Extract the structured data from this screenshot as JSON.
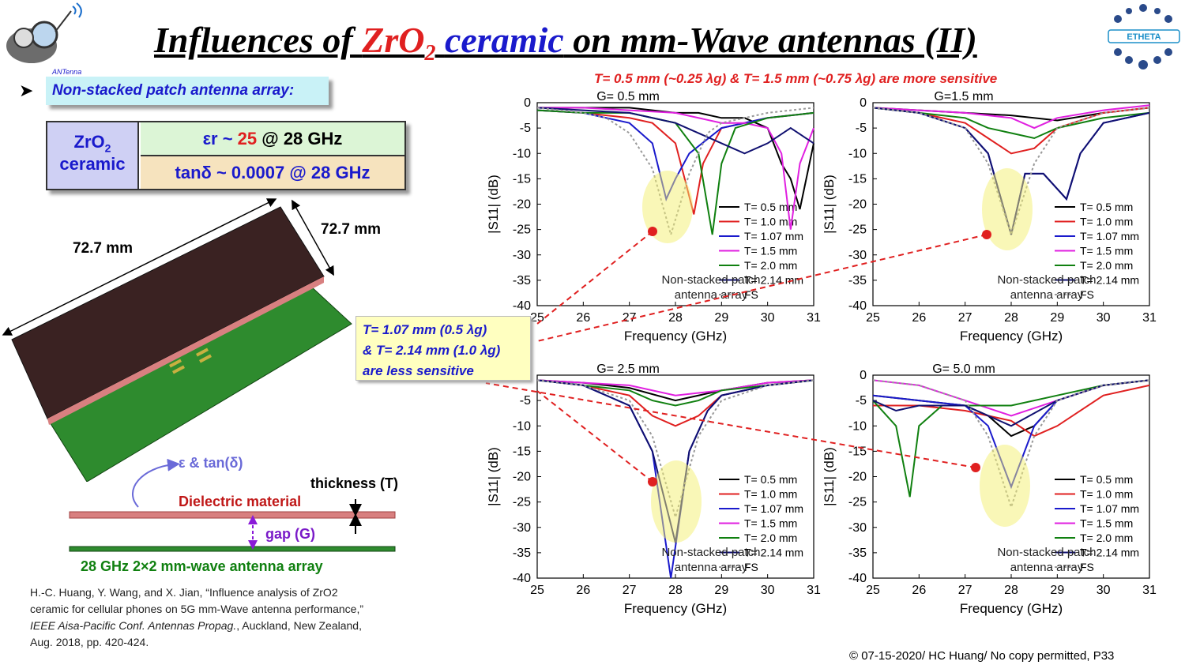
{
  "title": {
    "part1": "Influences of ",
    "zr": "ZrO",
    "sub": "2",
    "part2": " ",
    "ceramic": "ceramic",
    "part3": " on mm-Wave antennas (II)"
  },
  "subtitle": "T= 0.5 mm (~0.25 λg) & T= 1.5 mm (~0.75 λg) are more sensitive",
  "bullet": "Non-stacked patch antenna array:",
  "material": {
    "name1": "ZrO",
    "sub": "2",
    "name2": "ceramic",
    "er_pre": "εr ~ ",
    "er_val": "25",
    "er_post": " @ 28 GHz",
    "tan": "tanδ ~ 0.0007 @ 28 GHz"
  },
  "model": {
    "dim1": "72.7 mm",
    "dim2": "72.7 mm"
  },
  "diagram": {
    "eps": "ε & tan(δ)",
    "thickness": "thickness (T)",
    "dielectric": "Dielectric material",
    "gap": "gap (G)",
    "array": "28 GHz 2×2 mm-wave antenna array"
  },
  "note": {
    "line1": "T= 1.07 mm (0.5 λg)",
    "line2": "& T= 2.14 mm (1.0 λg)",
    "line3": "are less sensitive"
  },
  "reference": {
    "line1": "H.-C. Huang, Y. Wang, and X. Jian, “Influence analysis of ZrO2",
    "line2": "ceramic for cellular phones on 5G mm-Wave antenna performance,”",
    "line3": "IEEE Aisa-Pacific Conf. Antennas Propag.",
    "line3b": ", Auckland, New Zealand,",
    "line4": "Aug. 2018, pp. 420-424."
  },
  "copyright": "© 07-15-2020/ HC Huang/ No copy permitted, P33",
  "colors": {
    "T0.5": "#000000",
    "T1.0": "#e02020",
    "T1.07": "#1a1acc",
    "T1.5": "#e020e0",
    "T2.0": "#108010",
    "T2.14": "#101070",
    "FS": "#999999"
  },
  "chart_data": [
    {
      "type": "line",
      "title": "G= 0.5 mm",
      "xlabel": "Frequency (GHz)",
      "ylabel": "|S11| (dB)",
      "xlim": [
        25,
        31
      ],
      "ylim": [
        -40,
        0
      ],
      "xticks": [
        "25",
        "26",
        "27",
        "28",
        "29",
        "30",
        "31"
      ],
      "yticks": [
        "0",
        "-5",
        "-10",
        "-15",
        "-20",
        "-25",
        "-30",
        "-35",
        "-40"
      ],
      "annotation": "Non-stacked patch antenna array",
      "series": [
        {
          "name": "T= 0.5 mm",
          "x": [
            25,
            26,
            27,
            27.5,
            28,
            28.5,
            29,
            29.5,
            30,
            30.3,
            30.5,
            30.7,
            31
          ],
          "y": [
            -1,
            -1,
            -1,
            -1.5,
            -2,
            -2,
            -3,
            -3,
            -5,
            -12,
            -15,
            -21,
            -8
          ]
        },
        {
          "name": "T= 1.0 mm",
          "x": [
            25,
            26,
            27,
            27.5,
            28,
            28.2,
            28.4,
            28.6,
            29,
            30,
            31
          ],
          "y": [
            -1.5,
            -2,
            -3,
            -4,
            -8,
            -15,
            -22,
            -12,
            -5,
            -3,
            -2
          ]
        },
        {
          "name": "T= 1.07 mm",
          "x": [
            25,
            26,
            27,
            27.5,
            27.8,
            28,
            28.3,
            29,
            30,
            31
          ],
          "y": [
            -1.5,
            -2,
            -4,
            -8,
            -19,
            -15,
            -10,
            -5,
            -3,
            -2
          ]
        },
        {
          "name": "T= 1.5 mm",
          "x": [
            25,
            26,
            27,
            28,
            29,
            29.5,
            30,
            30.3,
            30.5,
            30.7,
            31
          ],
          "y": [
            -1,
            -1,
            -1.5,
            -2,
            -4,
            -4,
            -5,
            -10,
            -25,
            -12,
            -5
          ]
        },
        {
          "name": "T= 2.0 mm",
          "x": [
            25,
            26,
            27,
            28,
            28.5,
            28.8,
            29,
            29.3,
            30,
            31
          ],
          "y": [
            -1.5,
            -2,
            -2,
            -4,
            -10,
            -26,
            -12,
            -5,
            -3,
            -2
          ]
        },
        {
          "name": "T= 2.14 mm",
          "x": [
            25,
            26,
            27,
            28,
            29,
            29.5,
            30,
            30.5,
            31
          ],
          "y": [
            -1,
            -1.5,
            -2,
            -4,
            -8,
            -10,
            -8,
            -5,
            -8
          ]
        },
        {
          "name": "FS",
          "x": [
            25,
            26,
            26.5,
            27,
            27.5,
            27.9,
            28.3,
            28.7,
            29,
            30,
            31
          ],
          "y": [
            -1,
            -2,
            -3,
            -6,
            -13,
            -26,
            -14,
            -6,
            -4,
            -2,
            -1
          ]
        }
      ]
    },
    {
      "type": "line",
      "title": "G=1.5 mm",
      "xlabel": "Frequency (GHz)",
      "ylabel": "|S11| (dB)",
      "xlim": [
        25,
        31
      ],
      "ylim": [
        -40,
        0
      ],
      "xticks": [
        "25",
        "26",
        "27",
        "28",
        "29",
        "30",
        "31"
      ],
      "yticks": [
        "0",
        "-5",
        "-10",
        "-15",
        "-20",
        "-25",
        "-30",
        "-35",
        "-40"
      ],
      "annotation": "Non-stacked patch antenna array",
      "series": [
        {
          "name": "T= 0.5 mm",
          "x": [
            25,
            26,
            27,
            28,
            29,
            30,
            31
          ],
          "y": [
            -1,
            -1.5,
            -2,
            -2.5,
            -3.5,
            -2,
            -1
          ]
        },
        {
          "name": "T= 1.0 mm",
          "x": [
            25,
            26,
            27,
            27.5,
            28,
            28.5,
            29,
            30,
            31
          ],
          "y": [
            -1,
            -2,
            -4,
            -7,
            -10,
            -9,
            -5,
            -2,
            -1
          ]
        },
        {
          "name": "T= 1.07 mm",
          "x": [
            25,
            26,
            27,
            27.5,
            28,
            28.3,
            28.7,
            29,
            29.2,
            29.5,
            30,
            31
          ],
          "y": [
            -1,
            -2,
            -5,
            -10,
            -26,
            -14,
            -14,
            -17,
            -19,
            -10,
            -4,
            -2
          ]
        },
        {
          "name": "T= 1.5 mm",
          "x": [
            25,
            26,
            27,
            28,
            28.5,
            29,
            30,
            31
          ],
          "y": [
            -1,
            -1.5,
            -2,
            -3,
            -5,
            -3,
            -1.5,
            -0.5
          ]
        },
        {
          "name": "T= 2.0 mm",
          "x": [
            25,
            26,
            27,
            27.5,
            28,
            28.5,
            29,
            30,
            31
          ],
          "y": [
            -1,
            -2,
            -3,
            -5,
            -6,
            -7,
            -5,
            -3,
            -2
          ]
        },
        {
          "name": "T= 2.14 mm",
          "x": [
            25,
            26,
            27,
            27.5,
            28,
            28.3,
            28.7,
            29,
            29.2,
            29.5,
            30,
            31
          ],
          "y": [
            -1,
            -2,
            -5,
            -10,
            -26,
            -14,
            -14,
            -17,
            -19,
            -10,
            -4,
            -2
          ]
        },
        {
          "name": "FS",
          "x": [
            25,
            26,
            27,
            27.5,
            28,
            28.5,
            29,
            30,
            31
          ],
          "y": [
            -1,
            -2,
            -5,
            -12,
            -26,
            -12,
            -5,
            -2,
            -1
          ]
        }
      ]
    },
    {
      "type": "line",
      "title": "G= 2.5 mm",
      "xlabel": "Frequency (GHz)",
      "ylabel": "|S11| (dB)",
      "xlim": [
        25,
        31
      ],
      "ylim": [
        -40,
        0
      ],
      "xticks": [
        "25",
        "26",
        "27",
        "28",
        "29",
        "30",
        "31"
      ],
      "yticks": [
        "0",
        "-5",
        "-10",
        "-15",
        "-20",
        "-25",
        "-30",
        "-35",
        "-40"
      ],
      "annotation": "Non-stacked patch antenna array",
      "series": [
        {
          "name": "T= 0.5 mm",
          "x": [
            25,
            26,
            27,
            28,
            29,
            30,
            31
          ],
          "y": [
            -1,
            -1.5,
            -2.5,
            -5,
            -3,
            -1.5,
            -1
          ]
        },
        {
          "name": "T= 1.0 mm",
          "x": [
            25,
            26,
            27,
            27.5,
            28,
            28.5,
            29,
            30,
            31
          ],
          "y": [
            -1,
            -2,
            -4,
            -8,
            -10,
            -8,
            -4,
            -2,
            -1
          ]
        },
        {
          "name": "T= 1.07 mm",
          "x": [
            25,
            26,
            27,
            27.5,
            27.9,
            28.3,
            28.7,
            29,
            30,
            31
          ],
          "y": [
            -1,
            -2,
            -6,
            -15,
            -40,
            -15,
            -7,
            -4,
            -2,
            -1
          ]
        },
        {
          "name": "T= 1.5 mm",
          "x": [
            25,
            26,
            27,
            28,
            29,
            30,
            31
          ],
          "y": [
            -1,
            -1.5,
            -2,
            -4,
            -3,
            -1.5,
            -1
          ]
        },
        {
          "name": "T= 2.0 mm",
          "x": [
            25,
            26,
            27,
            27.5,
            28,
            28.5,
            29,
            30,
            31
          ],
          "y": [
            -1,
            -2,
            -3,
            -5,
            -6,
            -5,
            -3,
            -2,
            -1
          ]
        },
        {
          "name": "T= 2.14 mm",
          "x": [
            25,
            26,
            27,
            27.5,
            28,
            28.3,
            28.7,
            29,
            30,
            31
          ],
          "y": [
            -1,
            -2,
            -6,
            -15,
            -33,
            -15,
            -7,
            -4,
            -2,
            -1
          ]
        },
        {
          "name": "FS",
          "x": [
            25,
            26,
            27,
            27.5,
            28,
            28.5,
            29,
            30,
            31
          ],
          "y": [
            -1,
            -2,
            -5,
            -12,
            -28,
            -12,
            -5,
            -2,
            -1
          ]
        }
      ]
    },
    {
      "type": "line",
      "title": "G= 5.0 mm",
      "xlabel": "Frequency (GHz)",
      "ylabel": "|S11| (dB)",
      "xlim": [
        25,
        31
      ],
      "ylim": [
        -40,
        0
      ],
      "xticks": [
        "25",
        "26",
        "27",
        "28",
        "29",
        "30",
        "31"
      ],
      "yticks": [
        "0",
        "-5",
        "-10",
        "-15",
        "-20",
        "-25",
        "-30",
        "-35",
        "-40"
      ],
      "annotation": "Non-stacked patch antenna array",
      "series": [
        {
          "name": "T= 0.5 mm",
          "x": [
            25,
            26,
            27,
            27.5,
            28,
            28.5,
            29,
            30,
            31
          ],
          "y": [
            -4,
            -5,
            -6,
            -8,
            -12,
            -10,
            -5,
            -2,
            -1
          ]
        },
        {
          "name": "T= 1.0 mm",
          "x": [
            25,
            26,
            27,
            28,
            28.5,
            29,
            30,
            31
          ],
          "y": [
            -6,
            -6,
            -7,
            -9,
            -12,
            -10,
            -4,
            -2
          ]
        },
        {
          "name": "T= 1.07 mm",
          "x": [
            25,
            26,
            27,
            27.5,
            28,
            28.5,
            29,
            30,
            31
          ],
          "y": [
            -4,
            -5,
            -6,
            -10,
            -22,
            -10,
            -5,
            -2,
            -1
          ]
        },
        {
          "name": "T= 1.5 mm",
          "x": [
            25,
            26,
            27,
            28,
            29,
            30,
            31
          ],
          "y": [
            -1,
            -2,
            -5,
            -8,
            -5,
            -2,
            -1
          ]
        },
        {
          "name": "T= 2.0 mm",
          "x": [
            25,
            25.5,
            25.8,
            26,
            26.5,
            27,
            28,
            29,
            30,
            31
          ],
          "y": [
            -5,
            -10,
            -24,
            -10,
            -6,
            -6,
            -6,
            -4,
            -2,
            -1
          ]
        },
        {
          "name": "T= 2.14 mm",
          "x": [
            25,
            25.5,
            26,
            27,
            28,
            29,
            30,
            31
          ],
          "y": [
            -5,
            -7,
            -6,
            -6,
            -10,
            -5,
            -2,
            -1
          ]
        },
        {
          "name": "FS",
          "x": [
            25,
            26,
            27,
            27.5,
            28,
            28.5,
            29,
            30,
            31
          ],
          "y": [
            -1,
            -2,
            -5,
            -12,
            -26,
            -12,
            -5,
            -2,
            -1
          ]
        }
      ]
    }
  ]
}
